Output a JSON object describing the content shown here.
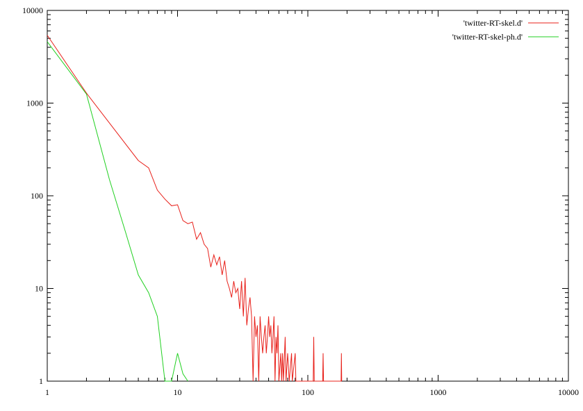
{
  "chart_data": {
    "type": "line",
    "title": "",
    "xlabel": "",
    "ylabel": "",
    "x_scale": "log",
    "y_scale": "log",
    "xlim": [
      1,
      10000
    ],
    "ylim": [
      1,
      10000
    ],
    "grid": false,
    "legend_position": "top-right",
    "x_ticks": [
      {
        "value": 1,
        "label": "1"
      },
      {
        "value": 10,
        "label": "10"
      },
      {
        "value": 100,
        "label": "100"
      },
      {
        "value": 1000,
        "label": "1000"
      },
      {
        "value": 10000,
        "label": "10000"
      }
    ],
    "y_ticks": [
      {
        "value": 1,
        "label": "1"
      },
      {
        "value": 10,
        "label": "10"
      },
      {
        "value": 100,
        "label": "100"
      },
      {
        "value": 1000,
        "label": "1000"
      },
      {
        "value": 10000,
        "label": "10000"
      }
    ],
    "series": [
      {
        "name": "'twitter-RT-skel.d'",
        "color": "#e8201a",
        "points": [
          [
            1,
            5400
          ],
          [
            2,
            1280
          ],
          [
            5,
            240
          ],
          [
            6,
            200
          ],
          [
            7,
            115
          ],
          [
            8,
            92
          ],
          [
            9,
            78
          ],
          [
            10,
            80
          ],
          [
            11,
            54
          ],
          [
            12,
            50
          ],
          [
            13,
            52
          ],
          [
            14,
            34
          ],
          [
            15,
            40
          ],
          [
            16,
            30
          ],
          [
            17,
            27
          ],
          [
            18,
            17
          ],
          [
            19,
            23
          ],
          [
            20,
            18
          ],
          [
            21,
            22
          ],
          [
            22,
            14
          ],
          [
            23,
            20
          ],
          [
            24,
            12
          ],
          [
            25,
            10
          ],
          [
            26,
            8
          ],
          [
            27,
            12
          ],
          [
            28,
            9
          ],
          [
            29,
            10
          ],
          [
            30,
            6
          ],
          [
            31,
            12
          ],
          [
            32,
            5
          ],
          [
            33,
            13
          ],
          [
            34,
            4
          ],
          [
            35,
            6
          ],
          [
            36,
            8
          ],
          [
            37,
            5
          ],
          [
            38,
            1
          ],
          [
            39,
            5
          ],
          [
            40,
            3
          ],
          [
            41,
            4
          ],
          [
            42,
            1
          ],
          [
            43,
            5
          ],
          [
            44,
            3
          ],
          [
            45,
            2
          ],
          [
            46,
            3
          ],
          [
            47,
            4
          ],
          [
            48,
            2
          ],
          [
            49,
            3
          ],
          [
            50,
            5
          ],
          [
            51,
            3
          ],
          [
            52,
            4
          ],
          [
            53,
            2
          ],
          [
            54,
            3
          ],
          [
            55,
            5
          ],
          [
            56,
            1
          ],
          [
            57,
            3
          ],
          [
            58,
            2
          ],
          [
            59,
            4
          ],
          [
            60,
            1
          ],
          [
            62,
            2
          ],
          [
            63,
            1
          ],
          [
            64,
            2
          ],
          [
            65,
            1
          ],
          [
            67,
            3
          ],
          [
            68,
            1
          ],
          [
            70,
            2
          ],
          [
            72,
            1
          ],
          [
            75,
            2
          ],
          [
            76,
            1
          ],
          [
            80,
            2
          ],
          [
            81,
            1
          ],
          [
            82,
            1
          ],
          [
            110,
            1
          ],
          [
            111,
            3
          ],
          [
            112,
            1
          ],
          [
            130,
            1
          ],
          [
            131,
            2
          ],
          [
            132,
            1
          ],
          [
            180,
            1
          ],
          [
            181,
            2
          ],
          [
            182,
            1
          ]
        ]
      },
      {
        "name": "'twitter-RT-skel-ph.d'",
        "color": "#20d020",
        "points": [
          [
            1,
            4600
          ],
          [
            2,
            1250
          ],
          [
            3,
            150
          ],
          [
            4,
            40
          ],
          [
            5,
            14
          ],
          [
            6,
            9
          ],
          [
            7,
            5
          ],
          [
            8,
            1
          ],
          [
            9,
            1
          ],
          [
            10,
            2
          ],
          [
            11,
            1.2
          ],
          [
            12,
            1
          ]
        ]
      }
    ]
  }
}
